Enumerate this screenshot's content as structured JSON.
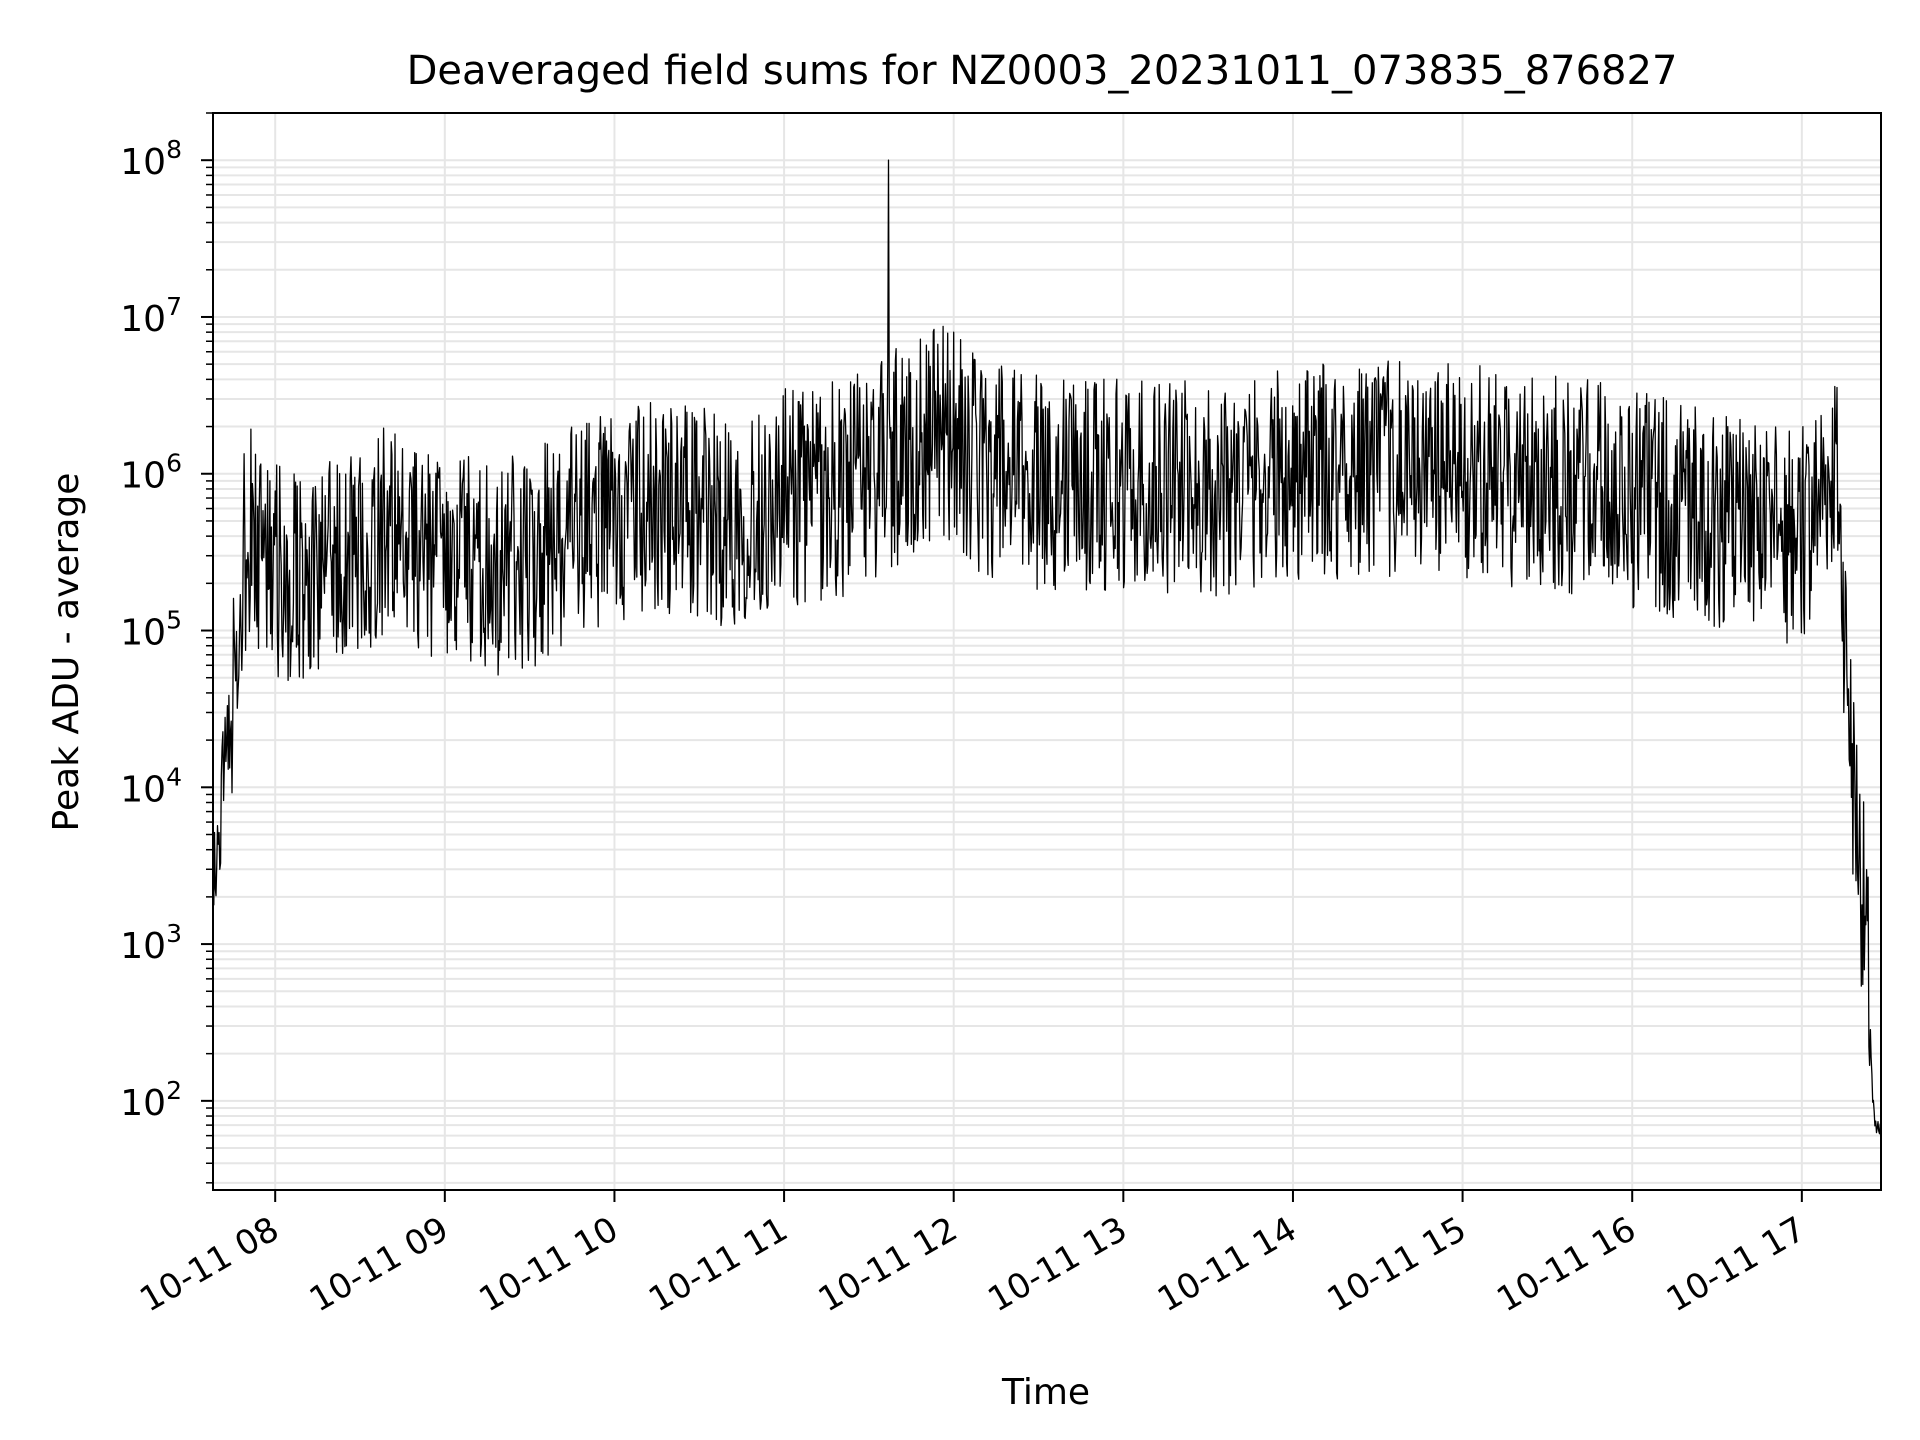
{
  "chart_data": {
    "type": "line",
    "title": "Deaveraged field sums for NZ0003_20231011_073835_876827",
    "xlabel": "Time",
    "ylabel": "Peak ADU - average",
    "x_tick_labels": [
      "10-11 08",
      "10-11 09",
      "10-11 10",
      "10-11 11",
      "10-11 12",
      "10-11 13",
      "10-11 14",
      "10-11 15",
      "10-11 16",
      "10-11 17"
    ],
    "x_ticks": [
      "2023-10-11 08:00",
      "2023-10-11 09:00",
      "2023-10-11 10:00",
      "2023-10-11 11:00",
      "2023-10-11 12:00",
      "2023-10-11 13:00",
      "2023-10-11 14:00",
      "2023-10-11 15:00",
      "2023-10-11 16:00",
      "2023-10-11 17:00"
    ],
    "xlim": [
      "2023-10-11 07:38",
      "2023-10-11 17:28"
    ],
    "y_scale": "log",
    "ylim": [
      27,
      200000000
    ],
    "y_ticks": [
      100,
      1000,
      10000,
      100000,
      1000000,
      10000000,
      100000000
    ],
    "y_tick_labels": [
      {
        "base": "10",
        "exp": "2"
      },
      {
        "base": "10",
        "exp": "3"
      },
      {
        "base": "10",
        "exp": "4"
      },
      {
        "base": "10",
        "exp": "5"
      },
      {
        "base": "10",
        "exp": "6"
      },
      {
        "base": "10",
        "exp": "7"
      },
      {
        "base": "10",
        "exp": "8"
      }
    ],
    "grid": true,
    "line_color": "#000000",
    "grid_color": "#e6e6e6",
    "series": [
      {
        "x": [
          "2023-10-11 07:38",
          "2023-10-11 07:40",
          "2023-10-11 07:42",
          "2023-10-11 07:44",
          "2023-10-11 07:46",
          "2023-10-11 07:48",
          "2023-10-11 07:50",
          "2023-10-11 07:52",
          "2023-10-11 07:55",
          "2023-10-11 07:58",
          "2023-10-11 08:05",
          "2023-10-11 08:15",
          "2023-10-11 08:30",
          "2023-10-11 08:45",
          "2023-10-11 09:00",
          "2023-10-11 09:15",
          "2023-10-11 09:30",
          "2023-10-11 09:45",
          "2023-10-11 10:00",
          "2023-10-11 10:20",
          "2023-10-11 10:40",
          "2023-10-11 11:00",
          "2023-10-11 11:20",
          "2023-10-11 11:37",
          "2023-10-11 11:45",
          "2023-10-11 11:56",
          "2023-10-11 12:10",
          "2023-10-11 12:30",
          "2023-10-11 13:00",
          "2023-10-11 13:30",
          "2023-10-11 14:00",
          "2023-10-11 14:30",
          "2023-10-11 15:00",
          "2023-10-11 15:30",
          "2023-10-11 16:00",
          "2023-10-11 16:30",
          "2023-10-11 16:45",
          "2023-10-11 17:00",
          "2023-10-11 17:07",
          "2023-10-11 17:12",
          "2023-10-11 17:14",
          "2023-10-11 17:16",
          "2023-10-11 17:18",
          "2023-10-11 17:20",
          "2023-10-11 17:22",
          "2023-10-11 17:24",
          "2023-10-11 17:25",
          "2023-10-11 17:26",
          "2023-10-11 17:28"
        ],
        "y": [
          3000,
          5000,
          15000,
          30000,
          80000,
          200000,
          400000,
          500000,
          300000,
          250000,
          200000,
          250000,
          350000,
          450000,
          300000,
          250000,
          280000,
          400000,
          550000,
          600000,
          500000,
          700000,
          800000,
          1200000,
          1500000,
          2000000,
          1100000,
          900000,
          900000,
          800000,
          1000000,
          1100000,
          1000000,
          900000,
          700000,
          500000,
          450000,
          400000,
          800000,
          1200000,
          300000,
          60000,
          12000,
          5000,
          1500,
          400,
          100,
          65,
          65
        ]
      }
    ],
    "spikes": [
      {
        "x": "2023-10-11 11:37",
        "y": 100000000
      },
      {
        "x": "2023-10-11 12:00",
        "y": 8000000
      }
    ],
    "y_noise_range_decades": 0.7
  }
}
